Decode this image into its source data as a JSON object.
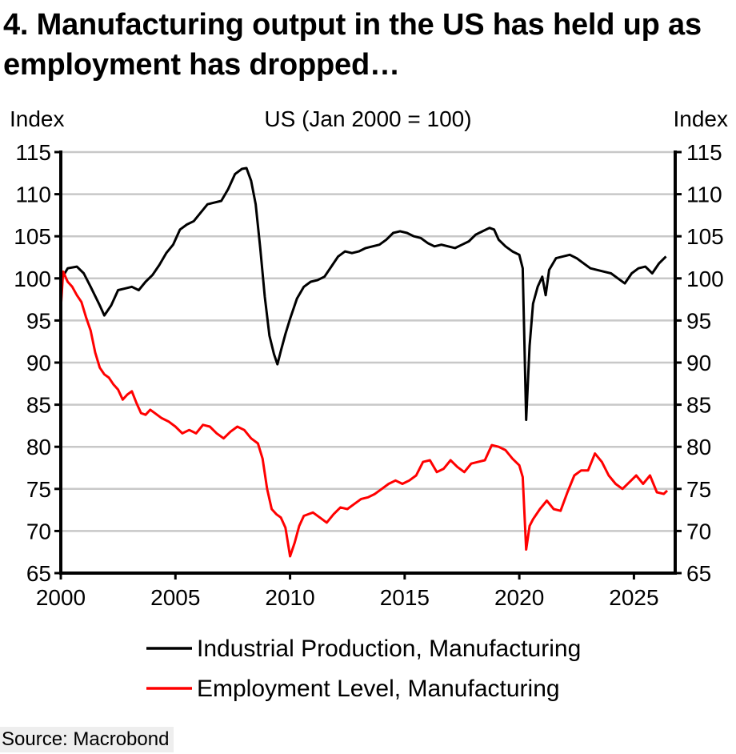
{
  "header": {
    "title": "4. Manufacturing output in the US has held up as employment has dropped…"
  },
  "footer": {
    "source": "Source: Macrobond"
  },
  "chart_data": {
    "type": "line",
    "subtitle": "US (Jan 2000 = 100)",
    "ylabel_left": "Index",
    "ylabel_right": "Index",
    "xlim": [
      2000,
      2026.8
    ],
    "ylim": [
      65,
      115
    ],
    "x_ticks": [
      2000,
      2005,
      2010,
      2015,
      2020,
      2025
    ],
    "y_ticks": [
      65,
      70,
      75,
      80,
      85,
      90,
      95,
      100,
      105,
      110,
      115
    ],
    "grid": true,
    "legend_position": "bottom",
    "series": [
      {
        "name": "Industrial Production, Manufacturing",
        "color": "#000000",
        "points": [
          [
            2000.0,
            99.8
          ],
          [
            2000.3,
            101.2
          ],
          [
            2000.7,
            101.4
          ],
          [
            2001.0,
            100.6
          ],
          [
            2001.3,
            99.0
          ],
          [
            2001.7,
            96.8
          ],
          [
            2001.9,
            95.6
          ],
          [
            2002.2,
            96.8
          ],
          [
            2002.5,
            98.6
          ],
          [
            2002.8,
            98.8
          ],
          [
            2003.1,
            99.0
          ],
          [
            2003.4,
            98.6
          ],
          [
            2003.7,
            99.6
          ],
          [
            2004.0,
            100.4
          ],
          [
            2004.3,
            101.6
          ],
          [
            2004.6,
            103.0
          ],
          [
            2004.9,
            104.0
          ],
          [
            2005.2,
            105.8
          ],
          [
            2005.5,
            106.4
          ],
          [
            2005.8,
            106.8
          ],
          [
            2006.1,
            107.8
          ],
          [
            2006.4,
            108.8
          ],
          [
            2006.7,
            109.0
          ],
          [
            2007.0,
            109.2
          ],
          [
            2007.3,
            110.6
          ],
          [
            2007.6,
            112.4
          ],
          [
            2007.9,
            113.0
          ],
          [
            2008.1,
            113.1
          ],
          [
            2008.3,
            111.6
          ],
          [
            2008.5,
            108.8
          ],
          [
            2008.7,
            103.6
          ],
          [
            2008.9,
            97.8
          ],
          [
            2009.1,
            93.2
          ],
          [
            2009.3,
            91.0
          ],
          [
            2009.45,
            89.8
          ],
          [
            2009.6,
            91.4
          ],
          [
            2009.8,
            93.4
          ],
          [
            2010.0,
            95.2
          ],
          [
            2010.3,
            97.6
          ],
          [
            2010.6,
            99.0
          ],
          [
            2010.9,
            99.6
          ],
          [
            2011.2,
            99.8
          ],
          [
            2011.5,
            100.2
          ],
          [
            2011.8,
            101.4
          ],
          [
            2012.1,
            102.6
          ],
          [
            2012.4,
            103.2
          ],
          [
            2012.7,
            103.0
          ],
          [
            2013.0,
            103.2
          ],
          [
            2013.3,
            103.6
          ],
          [
            2013.6,
            103.8
          ],
          [
            2013.9,
            104.0
          ],
          [
            2014.2,
            104.6
          ],
          [
            2014.5,
            105.4
          ],
          [
            2014.8,
            105.6
          ],
          [
            2015.1,
            105.4
          ],
          [
            2015.4,
            105.0
          ],
          [
            2015.7,
            104.8
          ],
          [
            2016.0,
            104.2
          ],
          [
            2016.3,
            103.8
          ],
          [
            2016.6,
            104.0
          ],
          [
            2016.9,
            103.8
          ],
          [
            2017.2,
            103.6
          ],
          [
            2017.5,
            104.0
          ],
          [
            2017.8,
            104.4
          ],
          [
            2018.1,
            105.2
          ],
          [
            2018.4,
            105.6
          ],
          [
            2018.7,
            106.0
          ],
          [
            2018.9,
            105.8
          ],
          [
            2019.1,
            104.6
          ],
          [
            2019.4,
            103.8
          ],
          [
            2019.7,
            103.2
          ],
          [
            2020.0,
            102.8
          ],
          [
            2020.15,
            101.2
          ],
          [
            2020.3,
            83.2
          ],
          [
            2020.45,
            92.0
          ],
          [
            2020.6,
            97.0
          ],
          [
            2020.8,
            99.0
          ],
          [
            2021.0,
            100.2
          ],
          [
            2021.15,
            98.0
          ],
          [
            2021.3,
            101.0
          ],
          [
            2021.6,
            102.4
          ],
          [
            2021.9,
            102.6
          ],
          [
            2022.2,
            102.8
          ],
          [
            2022.5,
            102.4
          ],
          [
            2022.8,
            101.8
          ],
          [
            2023.1,
            101.2
          ],
          [
            2023.4,
            101.0
          ],
          [
            2023.7,
            100.8
          ],
          [
            2024.0,
            100.6
          ],
          [
            2024.3,
            100.0
          ],
          [
            2024.6,
            99.4
          ],
          [
            2024.9,
            100.6
          ],
          [
            2025.2,
            101.2
          ],
          [
            2025.5,
            101.4
          ],
          [
            2025.8,
            100.6
          ],
          [
            2026.1,
            101.8
          ],
          [
            2026.4,
            102.6
          ]
        ]
      },
      {
        "name": "Employment Level, Manufacturing",
        "color": "#ff0000",
        "points": [
          [
            2000.0,
            96.4
          ],
          [
            2000.1,
            100.8
          ],
          [
            2000.3,
            99.6
          ],
          [
            2000.5,
            99.0
          ],
          [
            2000.7,
            98.0
          ],
          [
            2000.9,
            97.2
          ],
          [
            2001.1,
            95.4
          ],
          [
            2001.3,
            93.8
          ],
          [
            2001.5,
            91.2
          ],
          [
            2001.7,
            89.4
          ],
          [
            2001.9,
            88.6
          ],
          [
            2002.1,
            88.2
          ],
          [
            2002.3,
            87.4
          ],
          [
            2002.5,
            86.8
          ],
          [
            2002.7,
            85.6
          ],
          [
            2002.9,
            86.2
          ],
          [
            2003.1,
            86.6
          ],
          [
            2003.3,
            85.2
          ],
          [
            2003.5,
            84.0
          ],
          [
            2003.7,
            83.8
          ],
          [
            2003.9,
            84.4
          ],
          [
            2004.1,
            84.0
          ],
          [
            2004.4,
            83.4
          ],
          [
            2004.7,
            83.0
          ],
          [
            2005.0,
            82.4
          ],
          [
            2005.3,
            81.6
          ],
          [
            2005.6,
            82.0
          ],
          [
            2005.9,
            81.6
          ],
          [
            2006.2,
            82.6
          ],
          [
            2006.5,
            82.4
          ],
          [
            2006.8,
            81.6
          ],
          [
            2007.1,
            81.0
          ],
          [
            2007.4,
            81.8
          ],
          [
            2007.7,
            82.4
          ],
          [
            2008.0,
            82.0
          ],
          [
            2008.3,
            81.0
          ],
          [
            2008.6,
            80.4
          ],
          [
            2008.8,
            78.6
          ],
          [
            2009.0,
            75.0
          ],
          [
            2009.2,
            72.6
          ],
          [
            2009.4,
            72.0
          ],
          [
            2009.6,
            71.6
          ],
          [
            2009.8,
            70.4
          ],
          [
            2010.0,
            67.0
          ],
          [
            2010.2,
            68.6
          ],
          [
            2010.4,
            70.6
          ],
          [
            2010.6,
            71.8
          ],
          [
            2010.8,
            72.0
          ],
          [
            2011.0,
            72.2
          ],
          [
            2011.3,
            71.6
          ],
          [
            2011.6,
            71.0
          ],
          [
            2011.9,
            72.0
          ],
          [
            2012.2,
            72.8
          ],
          [
            2012.5,
            72.6
          ],
          [
            2012.8,
            73.2
          ],
          [
            2013.1,
            73.8
          ],
          [
            2013.4,
            74.0
          ],
          [
            2013.7,
            74.4
          ],
          [
            2014.0,
            75.0
          ],
          [
            2014.3,
            75.6
          ],
          [
            2014.6,
            76.0
          ],
          [
            2014.9,
            75.6
          ],
          [
            2015.2,
            76.0
          ],
          [
            2015.5,
            76.6
          ],
          [
            2015.8,
            78.2
          ],
          [
            2016.1,
            78.4
          ],
          [
            2016.4,
            77.0
          ],
          [
            2016.7,
            77.4
          ],
          [
            2017.0,
            78.4
          ],
          [
            2017.3,
            77.6
          ],
          [
            2017.6,
            77.0
          ],
          [
            2017.9,
            78.0
          ],
          [
            2018.2,
            78.2
          ],
          [
            2018.5,
            78.4
          ],
          [
            2018.8,
            80.2
          ],
          [
            2019.1,
            80.0
          ],
          [
            2019.4,
            79.6
          ],
          [
            2019.7,
            78.6
          ],
          [
            2020.0,
            77.8
          ],
          [
            2020.15,
            76.4
          ],
          [
            2020.3,
            67.8
          ],
          [
            2020.45,
            70.6
          ],
          [
            2020.6,
            71.4
          ],
          [
            2020.9,
            72.6
          ],
          [
            2021.2,
            73.6
          ],
          [
            2021.5,
            72.6
          ],
          [
            2021.8,
            72.4
          ],
          [
            2022.1,
            74.6
          ],
          [
            2022.4,
            76.6
          ],
          [
            2022.7,
            77.2
          ],
          [
            2023.0,
            77.2
          ],
          [
            2023.3,
            79.2
          ],
          [
            2023.6,
            78.2
          ],
          [
            2023.9,
            76.6
          ],
          [
            2024.2,
            75.6
          ],
          [
            2024.5,
            75.0
          ],
          [
            2024.8,
            75.8
          ],
          [
            2025.1,
            76.6
          ],
          [
            2025.4,
            75.6
          ],
          [
            2025.7,
            76.6
          ],
          [
            2026.0,
            74.6
          ],
          [
            2026.3,
            74.4
          ],
          [
            2026.45,
            74.8
          ]
        ]
      }
    ]
  }
}
